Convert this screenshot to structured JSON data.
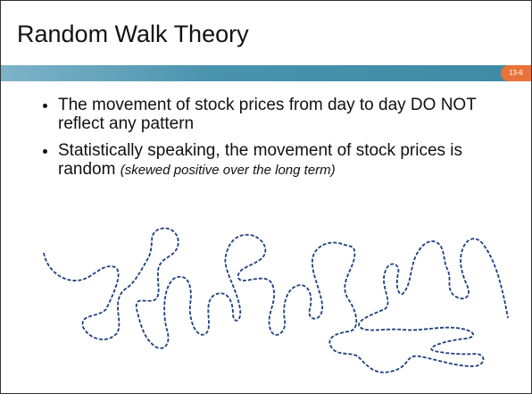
{
  "header": {
    "title": "Random Walk Theory",
    "slide_number": "13-6"
  },
  "bullets": [
    {
      "text": "The movement of stock prices from day to day DO NOT reflect any pattern"
    },
    {
      "text": "Statistically speaking, the movement of stock prices is random",
      "note": "(skewed positive over the long term)"
    }
  ]
}
